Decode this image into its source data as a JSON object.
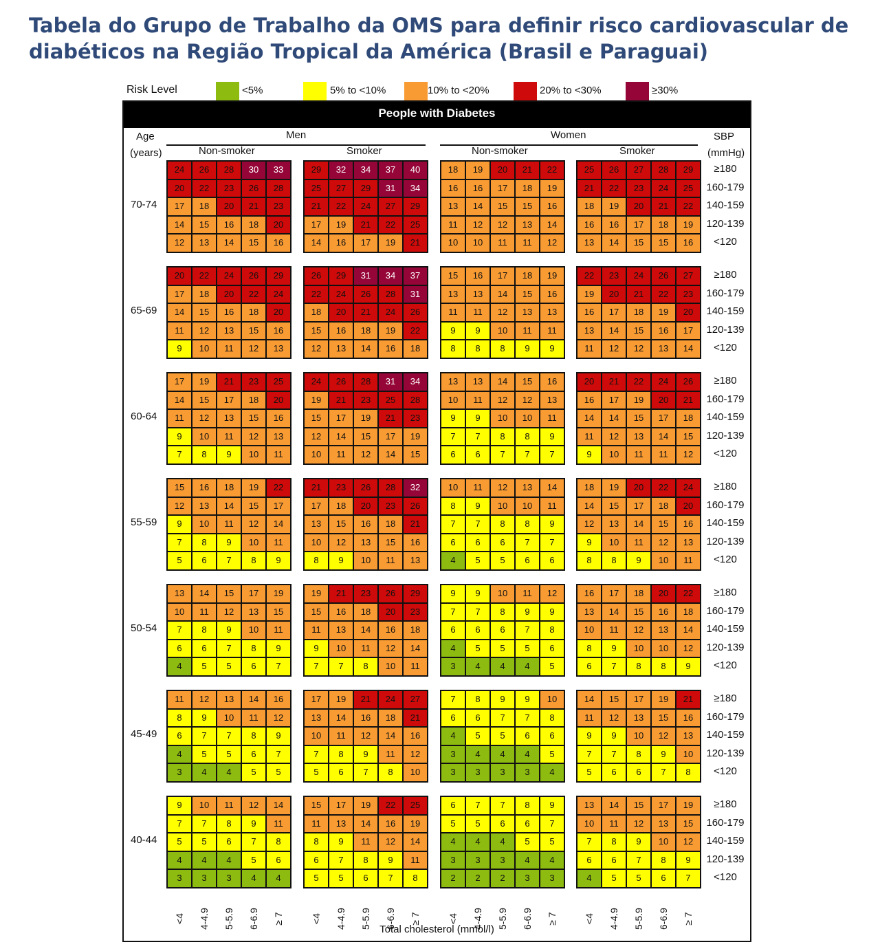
{
  "title_lines": [
    "Tabela do Grupo de Trabalho da OMS para definir risco cardiovascular de",
    "diabéticos na Região Tropical da América (Brasil e Paraguai)"
  ],
  "legend": {
    "label": "Risk Level",
    "items": [
      {
        "text": "<5%",
        "color": "#8dbb0f"
      },
      {
        "text": "5% to <10%",
        "color": "#ffff00"
      },
      {
        "text": "10% to <20%",
        "color": "#f89b33"
      },
      {
        "text": "20% to <30%",
        "color": "#cf0a0a"
      },
      {
        "text": "≥30%",
        "color": "#950537"
      }
    ]
  },
  "banner": "People with Diabetes",
  "headers": {
    "age_line1": "Age",
    "age_line2": "(years)",
    "men": "Men",
    "women": "Women",
    "non_smoker": "Non-smoker",
    "smoker": "Smoker",
    "sbp_line1": "SBP",
    "sbp_line2": "(mmHg)"
  },
  "chart_data": {
    "type": "heatmap",
    "title": "People with Diabetes",
    "xlabel": "Total cholesterol (mmol/l)",
    "ylabel": "SBP (mmHg)",
    "cholesterol_categories": [
      "<4",
      "4-4.9",
      "5-5.9",
      "6-6.9",
      "≥ 7"
    ],
    "sbp_categories": [
      "≥180",
      "160-179",
      "140-159",
      "120-139",
      "<120"
    ],
    "panels": [
      "Men Non-smoker",
      "Men Smoker",
      "Women Non-smoker",
      "Women Smoker"
    ],
    "risk_bands": [
      {
        "level": "<5%",
        "max": 4
      },
      {
        "level": "5% to <10%",
        "max": 9
      },
      {
        "level": "10% to <20%",
        "max": 19
      },
      {
        "level": "20% to <30%",
        "max": 29
      },
      {
        "level": "≥30%",
        "max": 100
      }
    ],
    "ages": [
      {
        "age": "70-74",
        "grids": [
          [
            [
              24,
              26,
              28,
              30,
              33
            ],
            [
              20,
              22,
              23,
              26,
              28
            ],
            [
              17,
              18,
              20,
              21,
              23
            ],
            [
              14,
              15,
              16,
              18,
              20
            ],
            [
              12,
              13,
              14,
              15,
              16
            ]
          ],
          [
            [
              29,
              32,
              34,
              37,
              40
            ],
            [
              25,
              27,
              29,
              31,
              34
            ],
            [
              21,
              22,
              24,
              27,
              29
            ],
            [
              17,
              19,
              21,
              22,
              25
            ],
            [
              14,
              16,
              17,
              19,
              21
            ]
          ],
          [
            [
              18,
              19,
              20,
              21,
              22
            ],
            [
              16,
              16,
              17,
              18,
              19
            ],
            [
              13,
              14,
              15,
              15,
              16
            ],
            [
              11,
              12,
              12,
              13,
              14
            ],
            [
              10,
              10,
              11,
              11,
              12
            ]
          ],
          [
            [
              25,
              26,
              27,
              28,
              29
            ],
            [
              21,
              22,
              23,
              24,
              25
            ],
            [
              18,
              19,
              20,
              21,
              22
            ],
            [
              16,
              16,
              17,
              18,
              19
            ],
            [
              13,
              14,
              15,
              15,
              16
            ]
          ]
        ]
      },
      {
        "age": "65-69",
        "grids": [
          [
            [
              20,
              22,
              24,
              26,
              29
            ],
            [
              17,
              18,
              20,
              22,
              24
            ],
            [
              14,
              15,
              16,
              18,
              20
            ],
            [
              11,
              12,
              13,
              15,
              16
            ],
            [
              9,
              10,
              11,
              12,
              13
            ]
          ],
          [
            [
              26,
              29,
              31,
              34,
              37
            ],
            [
              22,
              24,
              26,
              28,
              31
            ],
            [
              18,
              20,
              21,
              24,
              26
            ],
            [
              15,
              16,
              18,
              19,
              22
            ],
            [
              12,
              13,
              14,
              16,
              18
            ]
          ],
          [
            [
              15,
              16,
              17,
              18,
              19
            ],
            [
              13,
              13,
              14,
              15,
              16
            ],
            [
              11,
              11,
              12,
              13,
              13
            ],
            [
              9,
              9,
              10,
              11,
              11
            ],
            [
              8,
              8,
              8,
              9,
              9
            ]
          ],
          [
            [
              22,
              23,
              24,
              26,
              27
            ],
            [
              19,
              20,
              21,
              22,
              23
            ],
            [
              16,
              17,
              18,
              19,
              20
            ],
            [
              13,
              14,
              15,
              16,
              17
            ],
            [
              11,
              12,
              12,
              13,
              14
            ]
          ]
        ]
      },
      {
        "age": "60-64",
        "grids": [
          [
            [
              17,
              19,
              21,
              23,
              25
            ],
            [
              14,
              15,
              17,
              18,
              20
            ],
            [
              11,
              12,
              13,
              15,
              16
            ],
            [
              9,
              10,
              11,
              12,
              13
            ],
            [
              7,
              8,
              9,
              10,
              11
            ]
          ],
          [
            [
              24,
              26,
              28,
              31,
              34
            ],
            [
              19,
              21,
              23,
              25,
              28
            ],
            [
              15,
              17,
              19,
              21,
              23
            ],
            [
              12,
              14,
              15,
              17,
              19
            ],
            [
              10,
              11,
              12,
              14,
              15
            ]
          ],
          [
            [
              13,
              13,
              14,
              15,
              16
            ],
            [
              10,
              11,
              12,
              12,
              13
            ],
            [
              9,
              9,
              10,
              10,
              11
            ],
            [
              7,
              7,
              8,
              8,
              9
            ],
            [
              6,
              6,
              7,
              7,
              7
            ]
          ],
          [
            [
              20,
              21,
              22,
              24,
              26
            ],
            [
              16,
              17,
              19,
              20,
              21
            ],
            [
              14,
              14,
              15,
              17,
              18
            ],
            [
              11,
              12,
              13,
              14,
              15
            ],
            [
              9,
              10,
              11,
              11,
              12
            ]
          ]
        ]
      },
      {
        "age": "55-59",
        "grids": [
          [
            [
              15,
              16,
              18,
              19,
              22
            ],
            [
              12,
              13,
              14,
              15,
              17
            ],
            [
              9,
              10,
              11,
              12,
              14
            ],
            [
              7,
              8,
              9,
              10,
              11
            ],
            [
              5,
              6,
              7,
              8,
              9
            ]
          ],
          [
            [
              21,
              23,
              26,
              28,
              32
            ],
            [
              17,
              18,
              20,
              23,
              26
            ],
            [
              13,
              15,
              16,
              18,
              21
            ],
            [
              10,
              12,
              13,
              15,
              16
            ],
            [
              8,
              9,
              10,
              11,
              13
            ]
          ],
          [
            [
              10,
              11,
              12,
              13,
              14
            ],
            [
              8,
              9,
              10,
              10,
              11
            ],
            [
              7,
              7,
              8,
              8,
              9
            ],
            [
              6,
              6,
              6,
              7,
              7
            ],
            [
              4,
              5,
              5,
              6,
              6
            ]
          ],
          [
            [
              18,
              19,
              20,
              22,
              24
            ],
            [
              14,
              15,
              17,
              18,
              20
            ],
            [
              12,
              13,
              14,
              15,
              16
            ],
            [
              9,
              10,
              11,
              12,
              13
            ],
            [
              8,
              8,
              9,
              10,
              11
            ]
          ]
        ]
      },
      {
        "age": "50-54",
        "grids": [
          [
            [
              13,
              14,
              15,
              17,
              19
            ],
            [
              10,
              11,
              12,
              13,
              15
            ],
            [
              7,
              8,
              9,
              10,
              11
            ],
            [
              6,
              6,
              7,
              8,
              9
            ],
            [
              4,
              5,
              5,
              6,
              7
            ]
          ],
          [
            [
              19,
              21,
              23,
              26,
              29
            ],
            [
              15,
              16,
              18,
              20,
              23
            ],
            [
              11,
              13,
              14,
              16,
              18
            ],
            [
              9,
              10,
              11,
              12,
              14
            ],
            [
              7,
              7,
              8,
              10,
              11
            ]
          ],
          [
            [
              9,
              9,
              10,
              11,
              12
            ],
            [
              7,
              7,
              8,
              9,
              9
            ],
            [
              6,
              6,
              6,
              7,
              8
            ],
            [
              4,
              5,
              5,
              5,
              6
            ],
            [
              3,
              4,
              4,
              4,
              5
            ]
          ],
          [
            [
              16,
              17,
              18,
              20,
              22
            ],
            [
              13,
              14,
              15,
              16,
              18
            ],
            [
              10,
              11,
              12,
              13,
              14
            ],
            [
              8,
              9,
              10,
              10,
              12
            ],
            [
              6,
              7,
              8,
              8,
              9
            ]
          ]
        ]
      },
      {
        "age": "45-49",
        "grids": [
          [
            [
              11,
              12,
              13,
              14,
              16
            ],
            [
              8,
              9,
              10,
              11,
              12
            ],
            [
              6,
              7,
              7,
              8,
              9
            ],
            [
              4,
              5,
              5,
              6,
              7
            ],
            [
              3,
              4,
              4,
              5,
              5
            ]
          ],
          [
            [
              17,
              19,
              21,
              24,
              27
            ],
            [
              13,
              14,
              16,
              18,
              21
            ],
            [
              10,
              11,
              12,
              14,
              16
            ],
            [
              7,
              8,
              9,
              11,
              12
            ],
            [
              5,
              6,
              7,
              8,
              10
            ]
          ],
          [
            [
              7,
              8,
              9,
              9,
              10
            ],
            [
              6,
              6,
              7,
              7,
              8
            ],
            [
              4,
              5,
              5,
              6,
              6
            ],
            [
              3,
              4,
              4,
              4,
              5
            ],
            [
              3,
              3,
              3,
              3,
              4
            ]
          ],
          [
            [
              14,
              15,
              17,
              19,
              21
            ],
            [
              11,
              12,
              13,
              15,
              16
            ],
            [
              9,
              9,
              10,
              12,
              13
            ],
            [
              7,
              7,
              8,
              9,
              10
            ],
            [
              5,
              6,
              6,
              7,
              8
            ]
          ]
        ]
      },
      {
        "age": "40-44",
        "grids": [
          [
            [
              9,
              10,
              11,
              12,
              14
            ],
            [
              7,
              7,
              8,
              9,
              11
            ],
            [
              5,
              5,
              6,
              7,
              8
            ],
            [
              4,
              4,
              4,
              5,
              6
            ],
            [
              3,
              3,
              3,
              4,
              4
            ]
          ],
          [
            [
              15,
              17,
              19,
              22,
              25
            ],
            [
              11,
              13,
              14,
              16,
              19
            ],
            [
              8,
              9,
              11,
              12,
              14
            ],
            [
              6,
              7,
              8,
              9,
              11
            ],
            [
              5,
              5,
              6,
              7,
              8
            ]
          ],
          [
            [
              6,
              7,
              7,
              8,
              9
            ],
            [
              5,
              5,
              6,
              6,
              7
            ],
            [
              4,
              4,
              4,
              5,
              5
            ],
            [
              3,
              3,
              3,
              4,
              4
            ],
            [
              2,
              2,
              2,
              3,
              3
            ]
          ],
          [
            [
              13,
              14,
              15,
              17,
              19
            ],
            [
              10,
              11,
              12,
              13,
              15
            ],
            [
              7,
              8,
              9,
              10,
              12
            ],
            [
              6,
              6,
              7,
              8,
              9
            ],
            [
              4,
              5,
              5,
              6,
              7
            ]
          ]
        ]
      }
    ]
  }
}
